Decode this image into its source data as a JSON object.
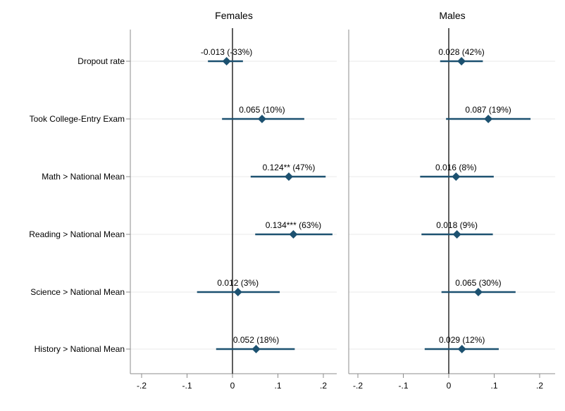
{
  "chart_data": {
    "type": "scatter",
    "subtype": "coefficient-forest-plot",
    "title": "",
    "grid": true,
    "legend_position": "none",
    "series_color": "#1c5170",
    "zero_line_value": 0,
    "xlim": [
      -0.225,
      0.228
    ],
    "x_ticks": [
      "-.2",
      "-.1",
      "0",
      ".1",
      ".2"
    ],
    "x_tick_values": [
      -0.2,
      -0.1,
      0,
      0.1,
      0.2
    ],
    "categories": [
      "Dropout rate",
      "Took College-Entry Exam",
      "Math > National Mean",
      "Reading > National Mean",
      "Science > National Mean",
      "History > National Mean"
    ],
    "panels": [
      {
        "title": "Females",
        "points": [
          {
            "category": "Dropout rate",
            "label": "-0.013 (-33%)",
            "est": -0.013,
            "lo": -0.054,
            "hi": 0.023
          },
          {
            "category": "Took College-Entry Exam",
            "label": "0.065 (10%)",
            "est": 0.065,
            "lo": -0.023,
            "hi": 0.158
          },
          {
            "category": "Math > National Mean",
            "label": "0.124** (47%)",
            "est": 0.124,
            "lo": 0.04,
            "hi": 0.205
          },
          {
            "category": "Reading > National Mean",
            "label": "0.134*** (63%)",
            "est": 0.134,
            "lo": 0.05,
            "hi": 0.22
          },
          {
            "category": "Science > National Mean",
            "label": "0.012 (3%)",
            "est": 0.012,
            "lo": -0.078,
            "hi": 0.104
          },
          {
            "category": "History > National Mean",
            "label": "0.052 (18%)",
            "est": 0.052,
            "lo": -0.036,
            "hi": 0.137
          }
        ]
      },
      {
        "title": "Males",
        "points": [
          {
            "category": "Dropout rate",
            "label": "0.028 (42%)",
            "est": 0.028,
            "lo": -0.019,
            "hi": 0.075
          },
          {
            "category": "Took College-Entry Exam",
            "label": "0.087 (19%)",
            "est": 0.087,
            "lo": -0.006,
            "hi": 0.18
          },
          {
            "category": "Math > National Mean",
            "label": "0.016 (8%)",
            "est": 0.016,
            "lo": -0.063,
            "hi": 0.099
          },
          {
            "category": "Reading > National Mean",
            "label": "0.018 (9%)",
            "est": 0.018,
            "lo": -0.06,
            "hi": 0.097
          },
          {
            "category": "Science > National Mean",
            "label": "0.065 (30%)",
            "est": 0.065,
            "lo": -0.016,
            "hi": 0.147
          },
          {
            "category": "History > National Mean",
            "label": "0.029 (12%)",
            "est": 0.029,
            "lo": -0.053,
            "hi": 0.11
          }
        ]
      }
    ],
    "colors": {
      "series": "#1c5170",
      "zero_line": "#1a1a1a",
      "axis": "#8c8c8c",
      "grid": "#e9e9e9",
      "text": "#000000"
    }
  }
}
